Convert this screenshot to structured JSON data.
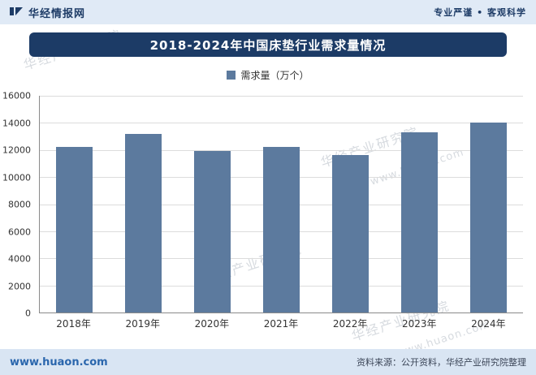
{
  "header": {
    "brand": "华经情报网",
    "slogan": "专业严谨 • 客观科学"
  },
  "title": "2018-2024年中国床垫行业需求量情况",
  "legend": {
    "label": "需求量（万个）"
  },
  "watermark": {
    "org": "华经产业研究院",
    "site": "www.huaon.com"
  },
  "footer": {
    "site": "www.huaon.com",
    "source": "资料来源：公开资料，华经产业研究院整理"
  },
  "colors": {
    "bar": "#5c7a9e",
    "title_bg": "#1c3b66",
    "topbar_bg": "#e0eaf6",
    "footer_bg": "#d9e5f3"
  },
  "chart_data": {
    "type": "bar",
    "title": "2018-2024年中国床垫行业需求量情况",
    "categories": [
      "2018年",
      "2019年",
      "2020年",
      "2021年",
      "2022年",
      "2023年",
      "2024年"
    ],
    "values": [
      12200,
      13200,
      11900,
      12200,
      11600,
      13300,
      14000
    ],
    "series_name": "需求量（万个）",
    "xlabel": "",
    "ylabel": "",
    "ylim": [
      0,
      16000
    ],
    "ytick_step": 2000,
    "grid": true,
    "legend_position": "top"
  }
}
